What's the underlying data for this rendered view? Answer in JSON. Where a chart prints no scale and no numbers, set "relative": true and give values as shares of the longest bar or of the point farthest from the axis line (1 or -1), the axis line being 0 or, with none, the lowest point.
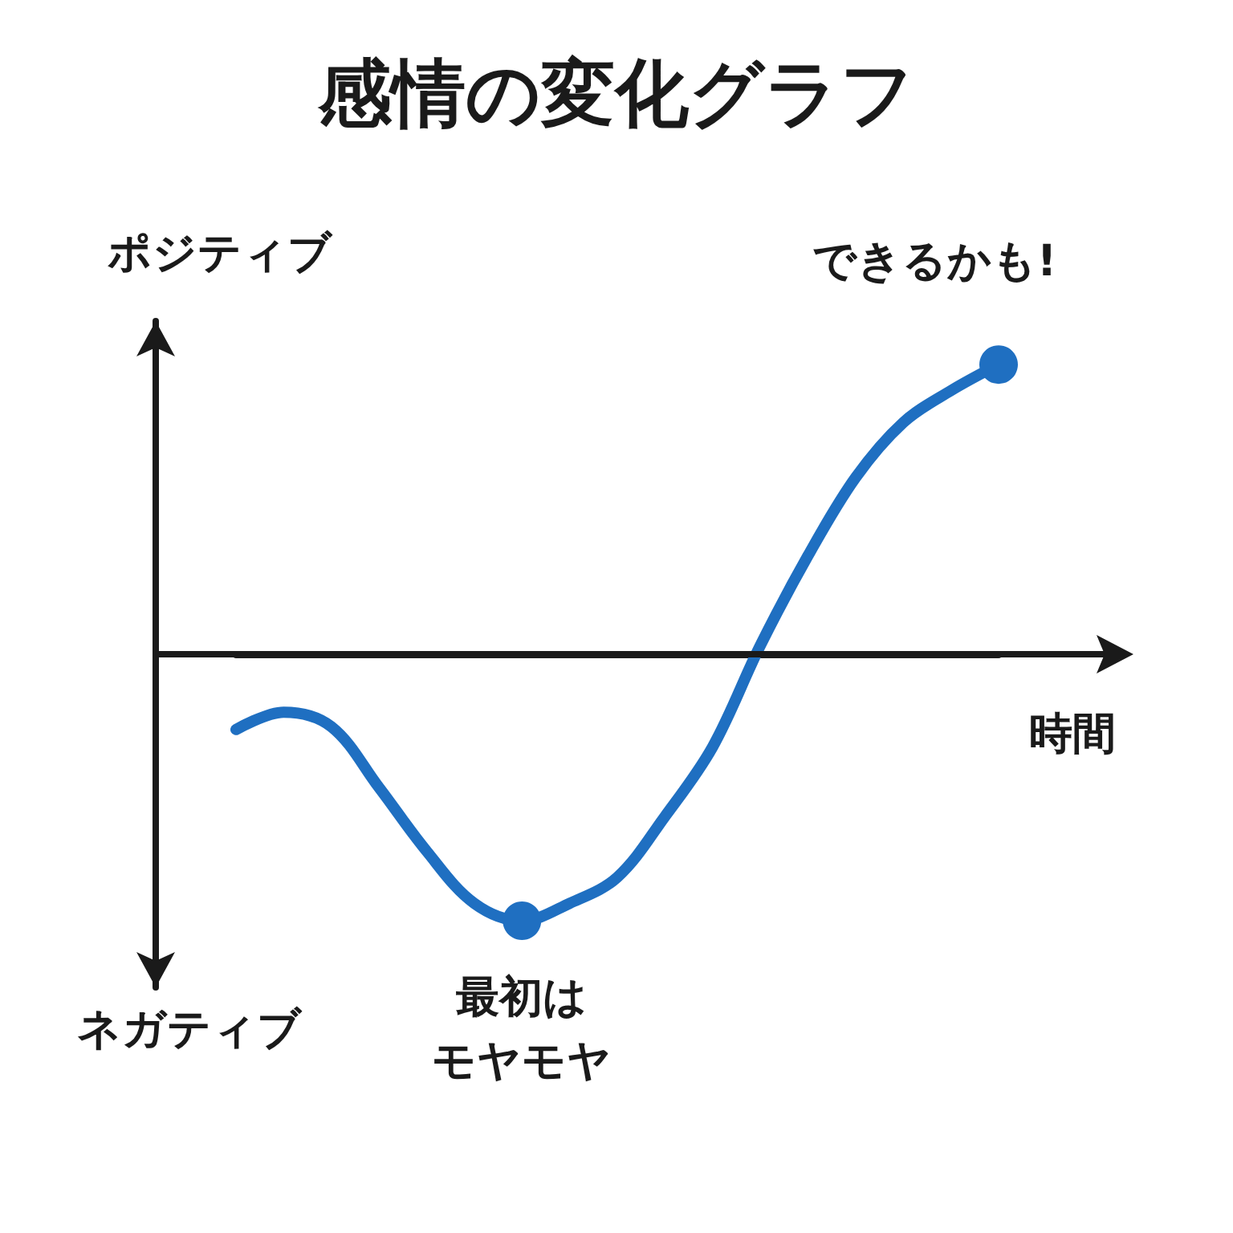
{
  "chart_data": {
    "type": "line",
    "title": "感情の変化グラフ",
    "xlabel": "時間",
    "ylabel": "ポジティブ",
    "relative": true,
    "categories": [
      null,
      null,
      null,
      null,
      null,
      null,
      null,
      null,
      null,
      null,
      null,
      null,
      null,
      null,
      null,
      null,
      null
    ],
    "series": [
      {
        "color": "#1f6fc1",
        "values": [
          -0.26,
          -0.2,
          -0.25,
          -0.46,
          -0.68,
          -0.86,
          -0.92,
          -0.86,
          -0.77,
          -0.56,
          -0.32,
          0.03,
          0.34,
          0.61,
          0.8,
          0.91,
          1
        ]
      }
    ],
    "annotations": [
      "最初は",
      "モヤモヤ",
      "できるかも!",
      "ネガティブ"
    ]
  }
}
